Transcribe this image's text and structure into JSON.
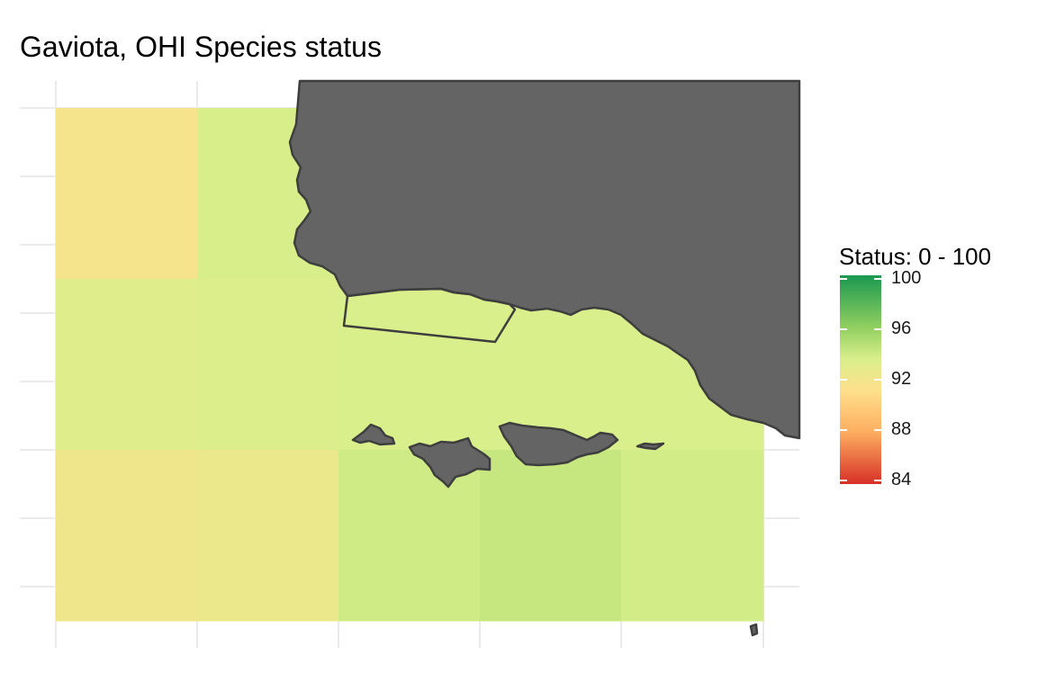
{
  "title": "Gaviota, OHI Species status",
  "legend": {
    "title": "Status: 0 - 100",
    "ticks": [
      "100",
      "96",
      "92",
      "88",
      "84"
    ],
    "tick_values": [
      100,
      96,
      92,
      88,
      84
    ],
    "range": [
      84,
      100
    ]
  },
  "colors": {
    "land": "#646464",
    "land_border": "#3e3e3e",
    "grid": "#ebebeb",
    "scale_high": "#1a9850",
    "scale_mid": "#fee08b",
    "scale_low": "#d73027"
  },
  "grid_cells": [
    {
      "row": 0,
      "col": 0,
      "status": 91.5
    },
    {
      "row": 0,
      "col": 1,
      "status": 93.1
    },
    {
      "row": 1,
      "col": 0,
      "status": 92.7
    },
    {
      "row": 1,
      "col": 1,
      "status": 92.9
    },
    {
      "row": 1,
      "col": 2,
      "status": 93.0
    },
    {
      "row": 1,
      "col": 3,
      "status": 93.0
    },
    {
      "row": 1,
      "col": 4,
      "status": 93.0
    },
    {
      "row": 2,
      "col": 0,
      "status": 91.8
    },
    {
      "row": 2,
      "col": 1,
      "status": 92.1
    },
    {
      "row": 2,
      "col": 2,
      "status": 93.4
    },
    {
      "row": 2,
      "col": 3,
      "status": 93.8
    },
    {
      "row": 2,
      "col": 4,
      "status": 93.3
    }
  ]
}
